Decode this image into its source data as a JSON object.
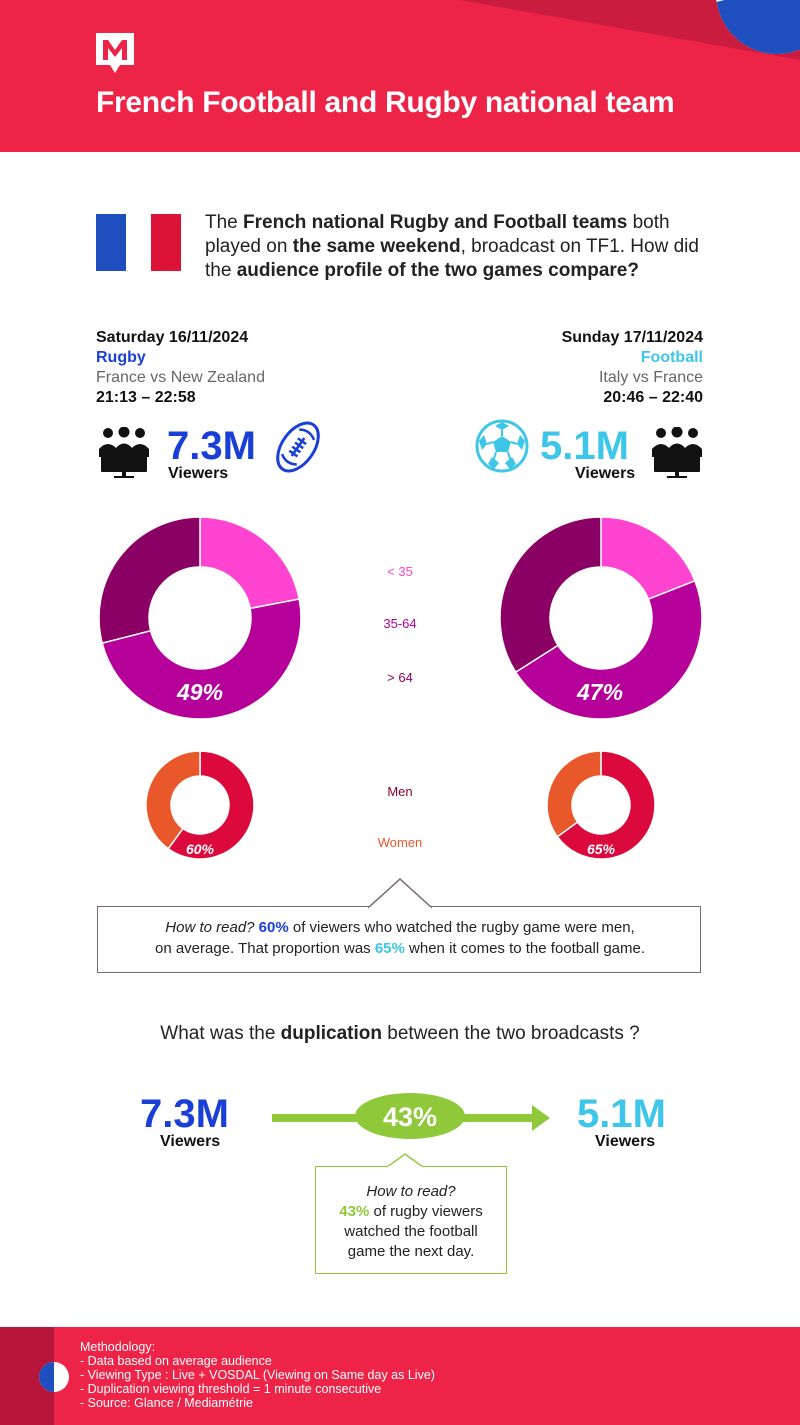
{
  "header": {
    "title": "French Football and Rugby national team",
    "logo_letter": "M",
    "bg_color": "#ee2348"
  },
  "intro": {
    "p1": "The ",
    "b1": "French national Rugby and Football teams",
    "p2": " both played on ",
    "b2": "the same weekend",
    "p3": ", broadcast on TF1. How did the ",
    "b3": "audience profile of the two games compare?"
  },
  "rugby": {
    "date": "Saturday 16/11/2024",
    "sport": "Rugby",
    "teams": "France vs New Zealand",
    "time": "21:13 – 22:58",
    "viewers": "7.3M",
    "viewers_label": "Viewers",
    "age_shares": [
      0.22,
      0.49,
      0.29
    ],
    "age_label": "49%",
    "men_share": 0.6,
    "men_label": "60%",
    "color": "#1a3fd6"
  },
  "football": {
    "date": "Sunday 17/11/2024",
    "sport": "Football",
    "teams": "Italy vs France",
    "time": "20:46 – 22:40",
    "viewers": "5.1M",
    "viewers_label": "Viewers",
    "age_shares": [
      0.19,
      0.47,
      0.34
    ],
    "age_label": "47%",
    "men_share": 0.65,
    "men_label": "65%",
    "color": "#3ec6e8"
  },
  "legend": {
    "age": [
      {
        "label": "< 35",
        "color": "#ff44d2"
      },
      {
        "label": "35-64",
        "color": "#b5009a"
      },
      {
        "label": "> 64",
        "color": "#8a0065"
      }
    ],
    "gender": [
      {
        "label": "Men",
        "color": "#dc0a3c"
      },
      {
        "label": "Women",
        "color": "#e8582a"
      }
    ]
  },
  "how_to_read_1": {
    "lead": "How to read?",
    "v1": "60%",
    "t1": " of viewers who watched the rugby game were men,",
    "t2": "on average. That proportion was ",
    "v2": "65%",
    "t3": " when it comes to the football game."
  },
  "duplication": {
    "q_pre": "What was the ",
    "q_bold": "duplication",
    "q_post": " between the two broadcasts ?",
    "left_value": "7.3M",
    "left_label": "Viewers",
    "pct": "43%",
    "right_value": "5.1M",
    "right_label": "Viewers",
    "accent": "#8fc93a"
  },
  "how_to_read_2": {
    "lead": "How to read?",
    "v": "43%",
    "t1": " of rugby viewers",
    "t2": "watched the football",
    "t3": "game the next day."
  },
  "methodology": {
    "title": "Methodology:",
    "lines": [
      "- Data based on average audience",
      "- Viewing Type : Live + VOSDAL (Viewing on Same day as Live)",
      "- Duplication viewing threshold = 1 minute consecutive",
      "- Source: Glance / Mediamétrie"
    ]
  }
}
